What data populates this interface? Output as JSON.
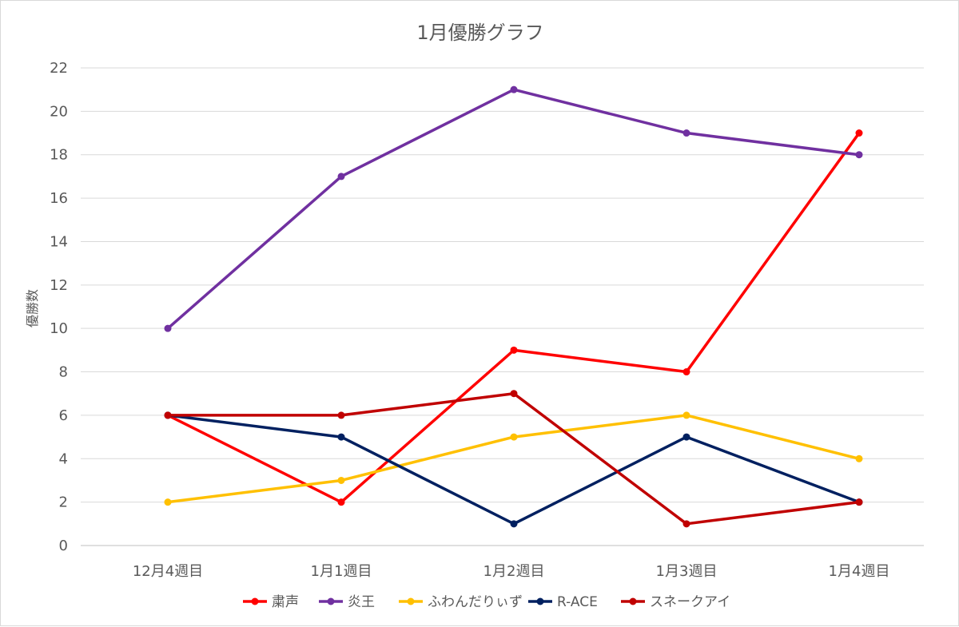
{
  "chart_data": {
    "type": "line",
    "title": "1月優勝グラフ",
    "xlabel": "",
    "ylabel": "優勝数",
    "ylim": [
      0,
      22
    ],
    "ytick_step": 2,
    "grid": true,
    "legend_position": "bottom",
    "categories": [
      "12月4週目",
      "1月1週目",
      "1月2週目",
      "1月3週目",
      "1月4週目"
    ],
    "series": [
      {
        "name": "粛声",
        "color": "#ff0000",
        "values": [
          6,
          2,
          9,
          8,
          19
        ]
      },
      {
        "name": "炎王",
        "color": "#7030a0",
        "values": [
          10,
          17,
          21,
          19,
          18
        ]
      },
      {
        "name": "ふわんだりぃず",
        "color": "#ffc000",
        "values": [
          2,
          3,
          5,
          6,
          4
        ]
      },
      {
        "name": "R-ACE",
        "color": "#002060",
        "values": [
          6,
          5,
          1,
          5,
          2
        ]
      },
      {
        "name": "スネークアイ",
        "color": "#c00000",
        "values": [
          6,
          6,
          7,
          1,
          2
        ]
      }
    ]
  }
}
